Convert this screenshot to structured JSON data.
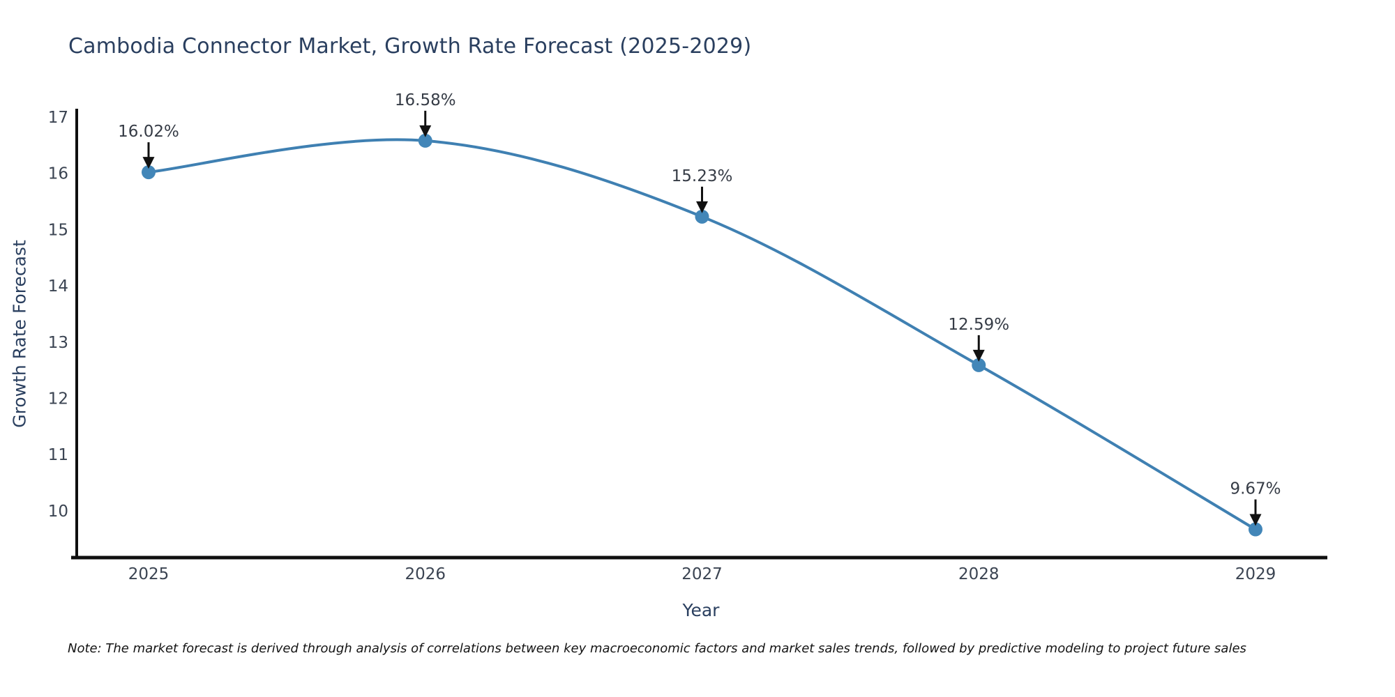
{
  "chart_data": {
    "type": "line",
    "title": "Cambodia Connector Market, Growth Rate Forecast (2025-2029)",
    "xlabel": "Year",
    "ylabel": "Growth Rate Forecast",
    "x": [
      2025,
      2026,
      2027,
      2028,
      2029
    ],
    "x_tick_labels": [
      "2025",
      "2026",
      "2027",
      "2028",
      "2029"
    ],
    "y_ticks": [
      10,
      11,
      12,
      13,
      14,
      15,
      16,
      17
    ],
    "series": [
      {
        "name": "Growth Rate Forecast",
        "values": [
          16.02,
          16.58,
          15.23,
          12.59,
          9.67
        ]
      }
    ],
    "point_labels": [
      "16.02%",
      "16.58%",
      "15.23%",
      "12.59%",
      "9.67%"
    ],
    "ylim": [
      9.17,
      17.12
    ],
    "xlim": [
      2024.74,
      2029.26
    ],
    "line_shape": "spline",
    "grid": false,
    "legend_position": "none",
    "colors": {
      "line": "#3f80b2",
      "marker": "#4286b8",
      "axis": "#0f0f0f",
      "arrow": "#111111",
      "annotation_text": "#363c46",
      "tick_text": "#3b4452",
      "title_text": "#2a3f5f"
    }
  },
  "note": {
    "text": "Note: The market forecast is derived through analysis of correlations between key macroeconomic factors and market sales trends, followed by predictive modeling to project future sales"
  }
}
